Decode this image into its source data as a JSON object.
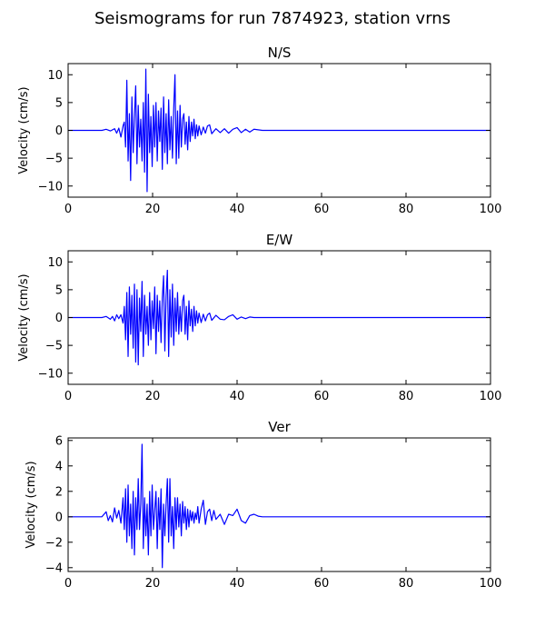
{
  "figure": {
    "title": "Seismograms for run 7874923, station vrns"
  },
  "chart_data": [
    {
      "type": "line",
      "title": "N/S",
      "xlabel": "",
      "ylabel": "Velocity (cm/s)",
      "xlim": [
        0,
        100
      ],
      "ylim": [
        -12,
        12
      ],
      "xticks": [
        0,
        20,
        40,
        60,
        80,
        100
      ],
      "yticks": [
        -10,
        -5,
        0,
        5,
        10
      ],
      "color": "#0000ff",
      "x": [
        0,
        8,
        9,
        10,
        11,
        11.5,
        12,
        12.5,
        13,
        13.3,
        13.6,
        13.9,
        14.2,
        14.5,
        14.8,
        15.1,
        15.4,
        15.7,
        16.0,
        16.3,
        16.6,
        16.9,
        17.2,
        17.5,
        17.8,
        18.1,
        18.4,
        18.7,
        19.0,
        19.3,
        19.6,
        19.9,
        20.2,
        20.5,
        20.8,
        21.1,
        21.4,
        21.7,
        22.0,
        22.3,
        22.6,
        22.9,
        23.2,
        23.5,
        23.8,
        24.1,
        24.4,
        24.7,
        25.0,
        25.3,
        25.6,
        25.9,
        26.2,
        26.5,
        26.8,
        27.1,
        27.4,
        27.7,
        28.0,
        28.3,
        28.6,
        28.9,
        29.2,
        29.5,
        29.8,
        30.1,
        30.4,
        30.7,
        31.0,
        31.5,
        32.0,
        32.5,
        33.0,
        33.5,
        34.0,
        35.0,
        36.0,
        37.0,
        38.0,
        39.0,
        40.0,
        41.0,
        42.0,
        43.0,
        44.0,
        45.0,
        46.0,
        47.0,
        50.0,
        100.0
      ],
      "y": [
        0,
        0,
        0.2,
        -0.1,
        0.3,
        -0.5,
        0.4,
        -1.2,
        0.8,
        1.5,
        -3.0,
        9.0,
        -5.5,
        3.0,
        -9.0,
        6.0,
        -4.0,
        2.5,
        8.0,
        -6.0,
        4.5,
        -3.0,
        2.0,
        -5.5,
        5.0,
        -7.5,
        11.0,
        -11.0,
        6.5,
        -4.0,
        2.5,
        -6.5,
        4.5,
        -3.0,
        5.0,
        -5.5,
        3.5,
        -2.0,
        4.0,
        -7.0,
        6.0,
        -4.0,
        3.0,
        -6.0,
        5.5,
        -3.5,
        2.5,
        -5.0,
        4.0,
        10.0,
        -6.0,
        3.5,
        -5.0,
        4.5,
        -3.0,
        2.0,
        3.0,
        -2.5,
        1.5,
        -3.5,
        2.5,
        -2.0,
        1.5,
        -1.0,
        2.0,
        -1.5,
        1.0,
        -1.0,
        0.8,
        -0.8,
        0.6,
        -0.5,
        0.8,
        1.0,
        -0.6,
        0.3,
        -0.4,
        0.3,
        -0.5,
        0.2,
        0.5,
        -0.4,
        0.2,
        -0.3,
        0.2,
        0.1,
        0,
        0,
        0,
        0
      ]
    },
    {
      "type": "line",
      "title": "E/W",
      "xlabel": "",
      "ylabel": "Velocity (cm/s)",
      "xlim": [
        0,
        100
      ],
      "ylim": [
        -12,
        12
      ],
      "xticks": [
        0,
        20,
        40,
        60,
        80,
        100
      ],
      "yticks": [
        -10,
        -5,
        0,
        5,
        10
      ],
      "color": "#0000ff",
      "x": [
        0,
        8,
        9,
        10,
        10.5,
        11,
        11.5,
        12,
        12.5,
        13,
        13.3,
        13.6,
        13.9,
        14.2,
        14.5,
        14.8,
        15.1,
        15.4,
        15.7,
        16.0,
        16.3,
        16.6,
        16.9,
        17.2,
        17.5,
        17.8,
        18.1,
        18.4,
        18.7,
        19.0,
        19.3,
        19.6,
        19.9,
        20.2,
        20.5,
        20.8,
        21.1,
        21.4,
        21.7,
        22.0,
        22.3,
        22.6,
        22.9,
        23.2,
        23.5,
        23.8,
        24.1,
        24.4,
        24.7,
        25.0,
        25.3,
        25.6,
        25.9,
        26.2,
        26.5,
        26.8,
        27.1,
        27.4,
        27.7,
        28.0,
        28.3,
        28.6,
        28.9,
        29.2,
        29.5,
        29.8,
        30.1,
        30.4,
        30.7,
        31.0,
        31.5,
        32.0,
        32.5,
        33.0,
        33.5,
        34.0,
        35.0,
        36.0,
        37.0,
        38.0,
        39.0,
        40.0,
        41.0,
        42.0,
        43.0,
        44.0,
        45.0,
        46.0,
        47.0,
        50.0,
        100.0
      ],
      "y": [
        0,
        0,
        0.2,
        -0.3,
        0.2,
        -0.6,
        0.5,
        -0.2,
        0.5,
        -1.0,
        2.0,
        -4.0,
        4.5,
        -7.0,
        5.5,
        -3.0,
        4.0,
        -5.5,
        6.0,
        -8.0,
        5.0,
        -8.5,
        3.5,
        -2.5,
        6.5,
        -7.0,
        4.0,
        -3.0,
        2.0,
        -5.0,
        4.5,
        -4.0,
        3.0,
        -2.0,
        5.5,
        -6.5,
        4.0,
        -2.5,
        3.0,
        -4.5,
        3.5,
        7.5,
        -6.0,
        4.0,
        8.5,
        -7.0,
        5.0,
        -3.5,
        6.0,
        -5.0,
        3.5,
        -2.5,
        4.5,
        -3.0,
        2.0,
        -2.5,
        3.0,
        4.0,
        -3.0,
        2.0,
        -4.0,
        3.0,
        -1.5,
        1.5,
        -2.5,
        2.0,
        -1.5,
        1.2,
        -1.0,
        0.8,
        -0.9,
        0.6,
        -0.6,
        0.5,
        0.8,
        -0.5,
        0.4,
        -0.3,
        -0.4,
        0.2,
        0.5,
        -0.3,
        0.1,
        -0.2,
        0.1,
        0,
        0,
        0,
        0,
        0,
        0
      ]
    },
    {
      "type": "line",
      "title": "Ver",
      "xlabel": "",
      "ylabel": "Velocity (cm/s)",
      "xlim": [
        0,
        100
      ],
      "ylim": [
        -4.3,
        6.2
      ],
      "xticks": [
        0,
        20,
        40,
        60,
        80,
        100
      ],
      "yticks": [
        -4,
        -2,
        0,
        2,
        4,
        6
      ],
      "color": "#0000ff",
      "x": [
        0,
        8,
        9,
        9.5,
        10,
        10.5,
        11,
        11.5,
        12,
        12.5,
        13,
        13.3,
        13.6,
        13.9,
        14.2,
        14.5,
        14.8,
        15.1,
        15.4,
        15.7,
        16.0,
        16.3,
        16.6,
        16.9,
        17.2,
        17.5,
        17.8,
        18.1,
        18.4,
        18.7,
        19.0,
        19.3,
        19.6,
        19.9,
        20.2,
        20.5,
        20.8,
        21.1,
        21.4,
        21.7,
        22.0,
        22.3,
        22.6,
        22.9,
        23.2,
        23.5,
        23.8,
        24.1,
        24.4,
        24.7,
        25.0,
        25.3,
        25.6,
        25.9,
        26.2,
        26.5,
        26.8,
        27.1,
        27.4,
        27.7,
        28.0,
        28.3,
        28.6,
        28.9,
        29.2,
        29.5,
        29.8,
        30.1,
        30.4,
        30.7,
        31.0,
        31.5,
        32.0,
        32.5,
        33.0,
        33.5,
        34.0,
        34.5,
        35.0,
        36.0,
        37.0,
        38.0,
        39.0,
        40.0,
        41.0,
        42.0,
        43.0,
        44.0,
        45.0,
        46.0,
        47.0,
        50.0,
        100.0
      ],
      "y": [
        0,
        0,
        0.4,
        -0.3,
        0.1,
        -0.4,
        0.7,
        -0.1,
        0.5,
        -0.5,
        1.5,
        -1.0,
        2.2,
        -2.0,
        2.5,
        -1.5,
        1.0,
        -2.5,
        2.0,
        -3.0,
        1.5,
        -1.0,
        3.0,
        -1.0,
        1.0,
        5.7,
        -2.5,
        1.5,
        -1.5,
        1.0,
        -3.0,
        2.0,
        -1.5,
        2.5,
        -1.0,
        0.5,
        2.0,
        -2.5,
        1.5,
        -1.0,
        2.2,
        -4.0,
        1.0,
        -1.5,
        1.0,
        3.0,
        -2.0,
        3.0,
        -1.5,
        0.8,
        -2.5,
        1.5,
        -1.0,
        1.5,
        -0.8,
        1.0,
        -1.5,
        1.2,
        -0.5,
        0.8,
        -1.0,
        0.6,
        -0.8,
        0.5,
        -0.3,
        0.4,
        -0.5,
        0.3,
        -0.2,
        0.8,
        -0.5,
        0.6,
        1.3,
        -0.6,
        0.4,
        0.6,
        -0.3,
        0.5,
        -0.2,
        0.2,
        -0.6,
        0.2,
        0.1,
        0.6,
        -0.3,
        -0.5,
        0.1,
        0.2,
        0.05,
        0,
        0,
        0,
        0
      ]
    }
  ]
}
